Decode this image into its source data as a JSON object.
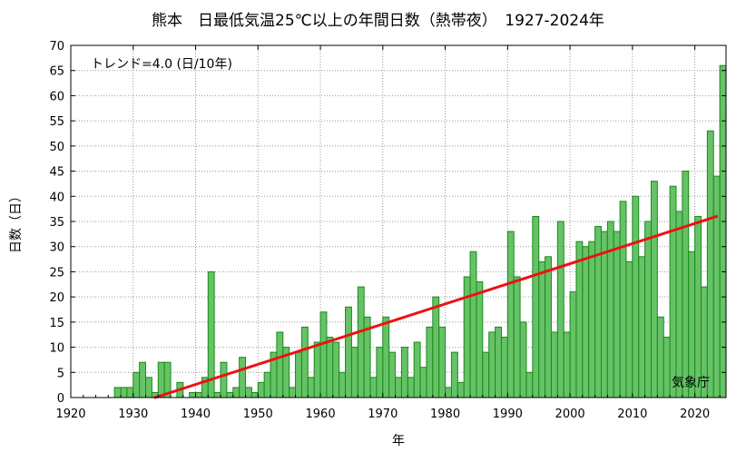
{
  "chart_data": {
    "type": "bar",
    "title": "熊本　日最低気温25℃以上の年間日数（熱帯夜）　1927-2024年",
    "xlabel": "年",
    "ylabel": "日数（日）",
    "xlim": [
      1920,
      2025
    ],
    "ylim": [
      0,
      70
    ],
    "xticks": [
      1920,
      1930,
      1940,
      1950,
      1960,
      1970,
      1980,
      1990,
      2000,
      2010,
      2020
    ],
    "yticks": [
      0,
      5,
      10,
      15,
      20,
      25,
      30,
      35,
      40,
      45,
      50,
      55,
      60,
      65,
      70
    ],
    "grid": "dotted",
    "trend_label": "トレンド=4.0 (日/10年)",
    "source_label": "気象庁",
    "colors": {
      "bar_fill": "#66c266",
      "bar_stroke": "#1a8a1a",
      "trend": "#ee1111",
      "grid": "#999999"
    },
    "trend_line": {
      "x": [
        1933.5,
        2023.5
      ],
      "y": [
        0,
        36
      ]
    },
    "years": [
      1927,
      1928,
      1929,
      1930,
      1931,
      1932,
      1933,
      1934,
      1935,
      1936,
      1937,
      1938,
      1939,
      1940,
      1941,
      1942,
      1943,
      1944,
      1945,
      1946,
      1947,
      1948,
      1949,
      1950,
      1951,
      1952,
      1953,
      1954,
      1955,
      1956,
      1957,
      1958,
      1959,
      1960,
      1961,
      1962,
      1963,
      1964,
      1965,
      1966,
      1967,
      1968,
      1969,
      1970,
      1971,
      1972,
      1973,
      1974,
      1975,
      1976,
      1977,
      1978,
      1979,
      1980,
      1981,
      1982,
      1983,
      1984,
      1985,
      1986,
      1987,
      1988,
      1989,
      1990,
      1991,
      1992,
      1993,
      1994,
      1995,
      1996,
      1997,
      1998,
      1999,
      2000,
      2001,
      2002,
      2003,
      2004,
      2005,
      2006,
      2007,
      2008,
      2009,
      2010,
      2011,
      2012,
      2013,
      2014,
      2015,
      2016,
      2017,
      2018,
      2019,
      2020,
      2021,
      2022,
      2023,
      2024
    ],
    "values": [
      2,
      2,
      2,
      5,
      7,
      4,
      1,
      7,
      7,
      0,
      3,
      0,
      1,
      1,
      4,
      25,
      1,
      7,
      1,
      2,
      8,
      2,
      1,
      3,
      5,
      9,
      13,
      10,
      2,
      9,
      14,
      4,
      11,
      17,
      12,
      11,
      5,
      18,
      10,
      22,
      16,
      4,
      10,
      16,
      9,
      4,
      10,
      4,
      11,
      6,
      14,
      20,
      14,
      2,
      9,
      3,
      24,
      29,
      23,
      9,
      13,
      14,
      12,
      33,
      24,
      15,
      5,
      36,
      27,
      28,
      13,
      35,
      13,
      21,
      31,
      30,
      31,
      34,
      33,
      35,
      33,
      39,
      27,
      40,
      28,
      35,
      43,
      16,
      12,
      42,
      37,
      45,
      29,
      36,
      22,
      53,
      44,
      66
    ]
  }
}
